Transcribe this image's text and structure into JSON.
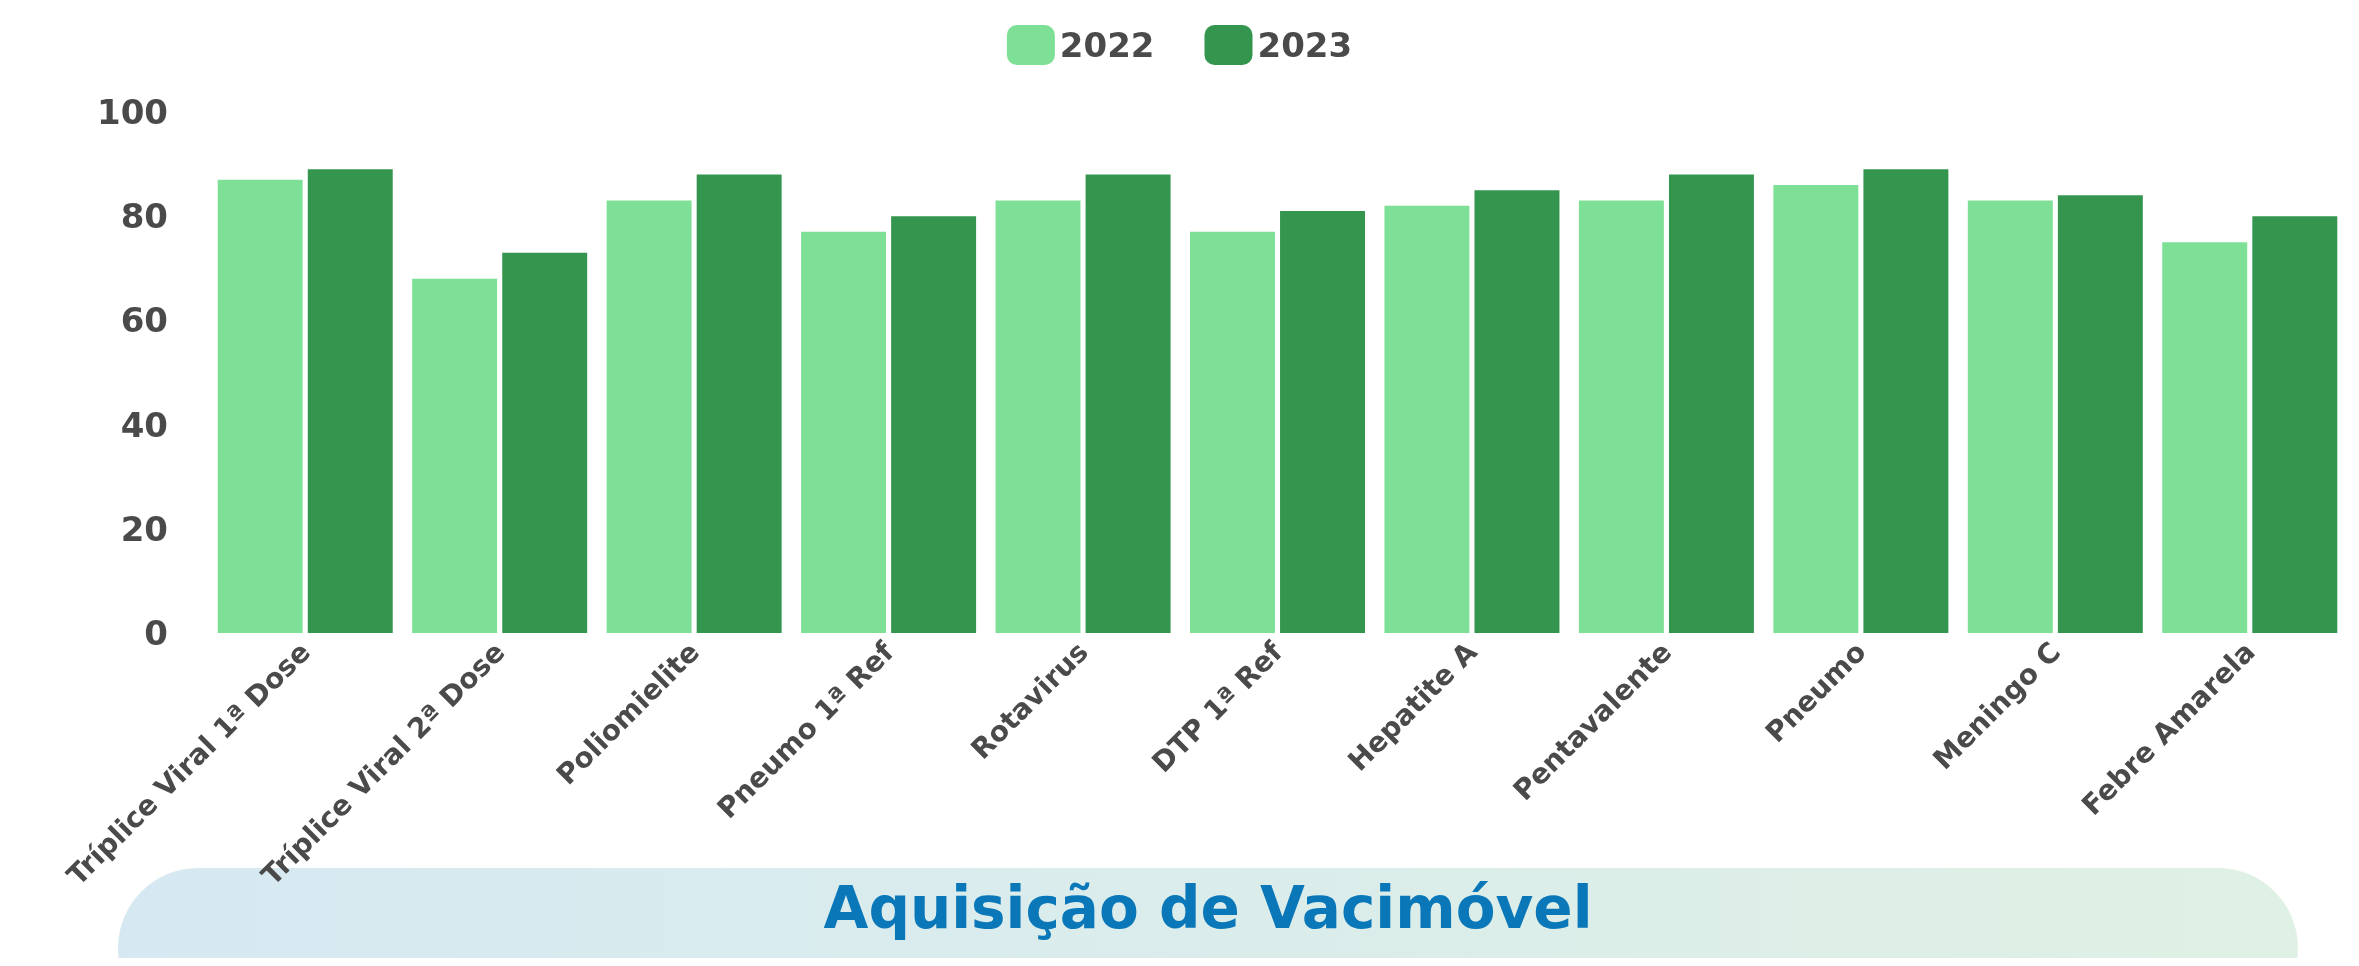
{
  "chart_data": {
    "type": "bar",
    "categories": [
      "Tríplice Viral 1ª Dose",
      "Tríplice Viral 2ª Dose",
      "Poliomielite",
      "Pneumo 1ª Ref",
      "Rotavirus",
      "DTP 1ª Ref",
      "Hepatite A",
      "Pentavalente",
      "Pneumo",
      "Meningo C",
      "Febre Amarela"
    ],
    "series": [
      {
        "name": "2022",
        "color": "#7ee096",
        "values": [
          87,
          68,
          83,
          77,
          83,
          77,
          82,
          83,
          86,
          83,
          75
        ]
      },
      {
        "name": "2023",
        "color": "#34964e",
        "values": [
          89,
          73,
          88,
          80,
          88,
          81,
          85,
          88,
          89,
          84,
          80
        ]
      }
    ],
    "ylim": [
      0,
      100
    ],
    "yticks": [
      0,
      20,
      40,
      60,
      80,
      100
    ],
    "grid": false,
    "legend": "top",
    "annotations": [
      "Aquisição de Vacimóvel"
    ]
  }
}
